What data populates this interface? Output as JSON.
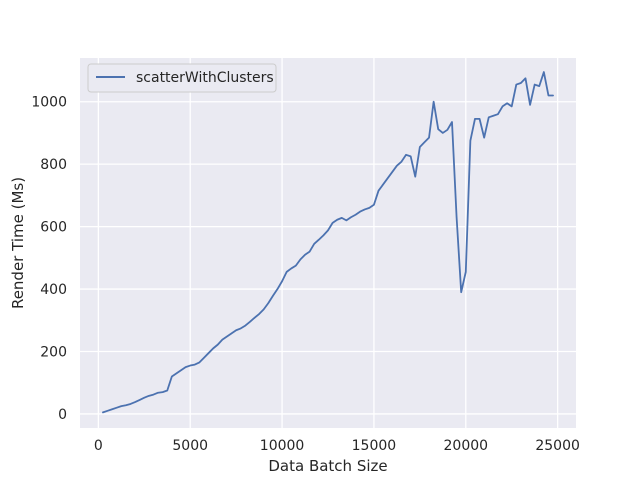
{
  "chart_data": {
    "type": "line",
    "title": "",
    "xlabel": "Data Batch Size",
    "ylabel": "Render Time (Ms)",
    "xlim": [
      -1000,
      26000
    ],
    "ylim": [
      -45,
      1140
    ],
    "xticks": [
      0,
      5000,
      10000,
      15000,
      20000,
      25000
    ],
    "yticks": [
      0,
      200,
      400,
      600,
      800,
      1000
    ],
    "grid": true,
    "legend_position": "top-left",
    "background_color": "#eaeaf2",
    "series": [
      {
        "name": "scatterWithClusters",
        "color": "#4c72b0",
        "x": [
          250,
          500,
          750,
          1000,
          1250,
          1500,
          1750,
          2000,
          2250,
          2500,
          2750,
          3000,
          3250,
          3500,
          3750,
          4000,
          4250,
          4500,
          4750,
          5000,
          5250,
          5500,
          5750,
          6000,
          6250,
          6500,
          6750,
          7000,
          7250,
          7500,
          7750,
          8000,
          8250,
          8500,
          8750,
          9000,
          9250,
          9500,
          9750,
          10000,
          10250,
          10500,
          10750,
          11000,
          11250,
          11500,
          11750,
          12000,
          12250,
          12500,
          12750,
          13000,
          13250,
          13500,
          13750,
          14000,
          14250,
          14500,
          14750,
          15000,
          15250,
          15500,
          15750,
          16000,
          16250,
          16500,
          16750,
          17000,
          17250,
          17500,
          17750,
          18000,
          18250,
          18500,
          18750,
          19000,
          19250,
          19500,
          19750,
          20000,
          20250,
          20500,
          20750,
          21000,
          21250,
          21500,
          21750,
          22000,
          22250,
          22500,
          22750,
          23000,
          23250,
          23500,
          23750,
          24000,
          24250,
          24500,
          24750
        ],
        "y": [
          5,
          10,
          15,
          20,
          25,
          28,
          32,
          38,
          45,
          52,
          58,
          62,
          68,
          70,
          75,
          120,
          130,
          140,
          150,
          155,
          158,
          165,
          180,
          195,
          210,
          222,
          238,
          248,
          258,
          268,
          274,
          283,
          295,
          308,
          320,
          335,
          355,
          378,
          400,
          425,
          455,
          466,
          475,
          495,
          510,
          520,
          545,
          558,
          572,
          588,
          612,
          622,
          628,
          620,
          630,
          638,
          648,
          655,
          660,
          670,
          715,
          735,
          755,
          775,
          795,
          808,
          830,
          825,
          760,
          855,
          870,
          885,
          1000,
          912,
          900,
          910,
          935,
          630,
          390,
          455,
          875,
          945,
          945,
          885,
          950,
          955,
          960,
          985,
          995,
          985,
          1055,
          1060,
          1075,
          990,
          1055,
          1050,
          1095,
          1020,
          1020
        ]
      }
    ]
  }
}
